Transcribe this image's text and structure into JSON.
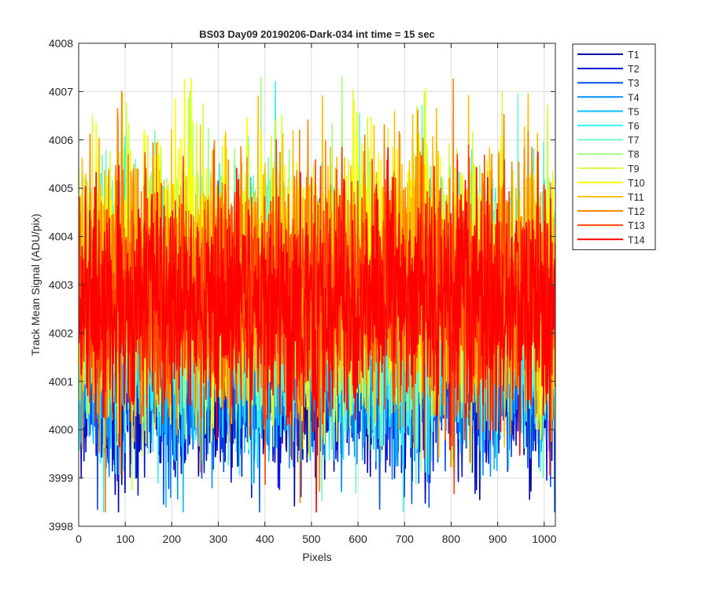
{
  "chart_data": {
    "type": "line",
    "title": "BS03 Day09 20190206-Dark-034 int time = 15 sec",
    "xlabel": "Pixels",
    "ylabel": "Track Mean Signal (ADU/pix)",
    "xlim": [
      0,
      1024
    ],
    "ylim": [
      3998,
      4008
    ],
    "xticks": [
      "0",
      "100",
      "200",
      "300",
      "400",
      "500",
      "600",
      "700",
      "800",
      "900",
      "1000"
    ],
    "yticks": [
      "3998",
      "3999",
      "4000",
      "4001",
      "4002",
      "4003",
      "4004",
      "4005",
      "4006",
      "4007",
      "4008"
    ],
    "grid": true,
    "legend_position": "outside-top-right",
    "n_points": 1024,
    "series": [
      {
        "name": "T1",
        "color": "#0000a8",
        "mean": 4000.9,
        "spread": 0.9
      },
      {
        "name": "T2",
        "color": "#0014d8",
        "mean": 4001.1,
        "spread": 0.9
      },
      {
        "name": "T3",
        "color": "#0050f0",
        "mean": 4001.4,
        "spread": 1.0
      },
      {
        "name": "T4",
        "color": "#0090ff",
        "mean": 4001.7,
        "spread": 1.1
      },
      {
        "name": "T5",
        "color": "#10c0ff",
        "mean": 4002.0,
        "spread": 1.2
      },
      {
        "name": "T6",
        "color": "#30f0f0",
        "mean": 4002.3,
        "spread": 1.3
      },
      {
        "name": "T7",
        "color": "#70f8c8",
        "mean": 4002.6,
        "spread": 1.3
      },
      {
        "name": "T8",
        "color": "#a0ff80",
        "mean": 4002.9,
        "spread": 1.3
      },
      {
        "name": "T9",
        "color": "#d0ff40",
        "mean": 4003.1,
        "spread": 1.3
      },
      {
        "name": "T10",
        "color": "#ffff00",
        "mean": 4003.2,
        "spread": 1.3
      },
      {
        "name": "T11",
        "color": "#ffc000",
        "mean": 4003.1,
        "spread": 1.3
      },
      {
        "name": "T12",
        "color": "#ff8000",
        "mean": 4003.0,
        "spread": 1.3
      },
      {
        "name": "T13",
        "color": "#ff4000",
        "mean": 4002.8,
        "spread": 1.2
      },
      {
        "name": "T14",
        "color": "#ff0000",
        "mean": 4002.6,
        "spread": 1.2
      }
    ]
  }
}
